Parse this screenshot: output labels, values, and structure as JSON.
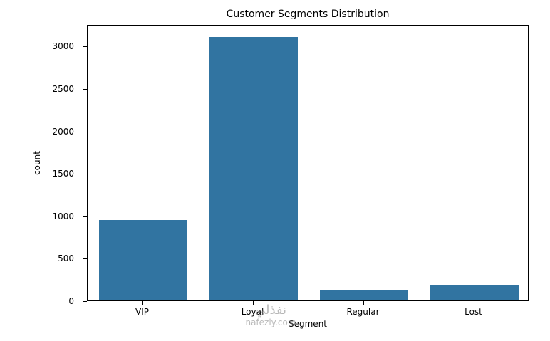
{
  "chart_data": {
    "type": "bar",
    "title": "Customer Segments Distribution",
    "xlabel": "Segment",
    "ylabel": "count",
    "categories": [
      "VIP",
      "Loyal",
      "Regular",
      "Lost"
    ],
    "values": [
      950,
      3100,
      130,
      175
    ],
    "ylim": [
      0,
      3255
    ],
    "yticks": [
      0,
      500,
      1000,
      1500,
      2000,
      2500,
      3000
    ],
    "bar_color": "#3174a1",
    "grid": false,
    "legend": null
  },
  "watermark": {
    "arabic_text": "نفذلي",
    "domain_text": "nafezly.com"
  }
}
